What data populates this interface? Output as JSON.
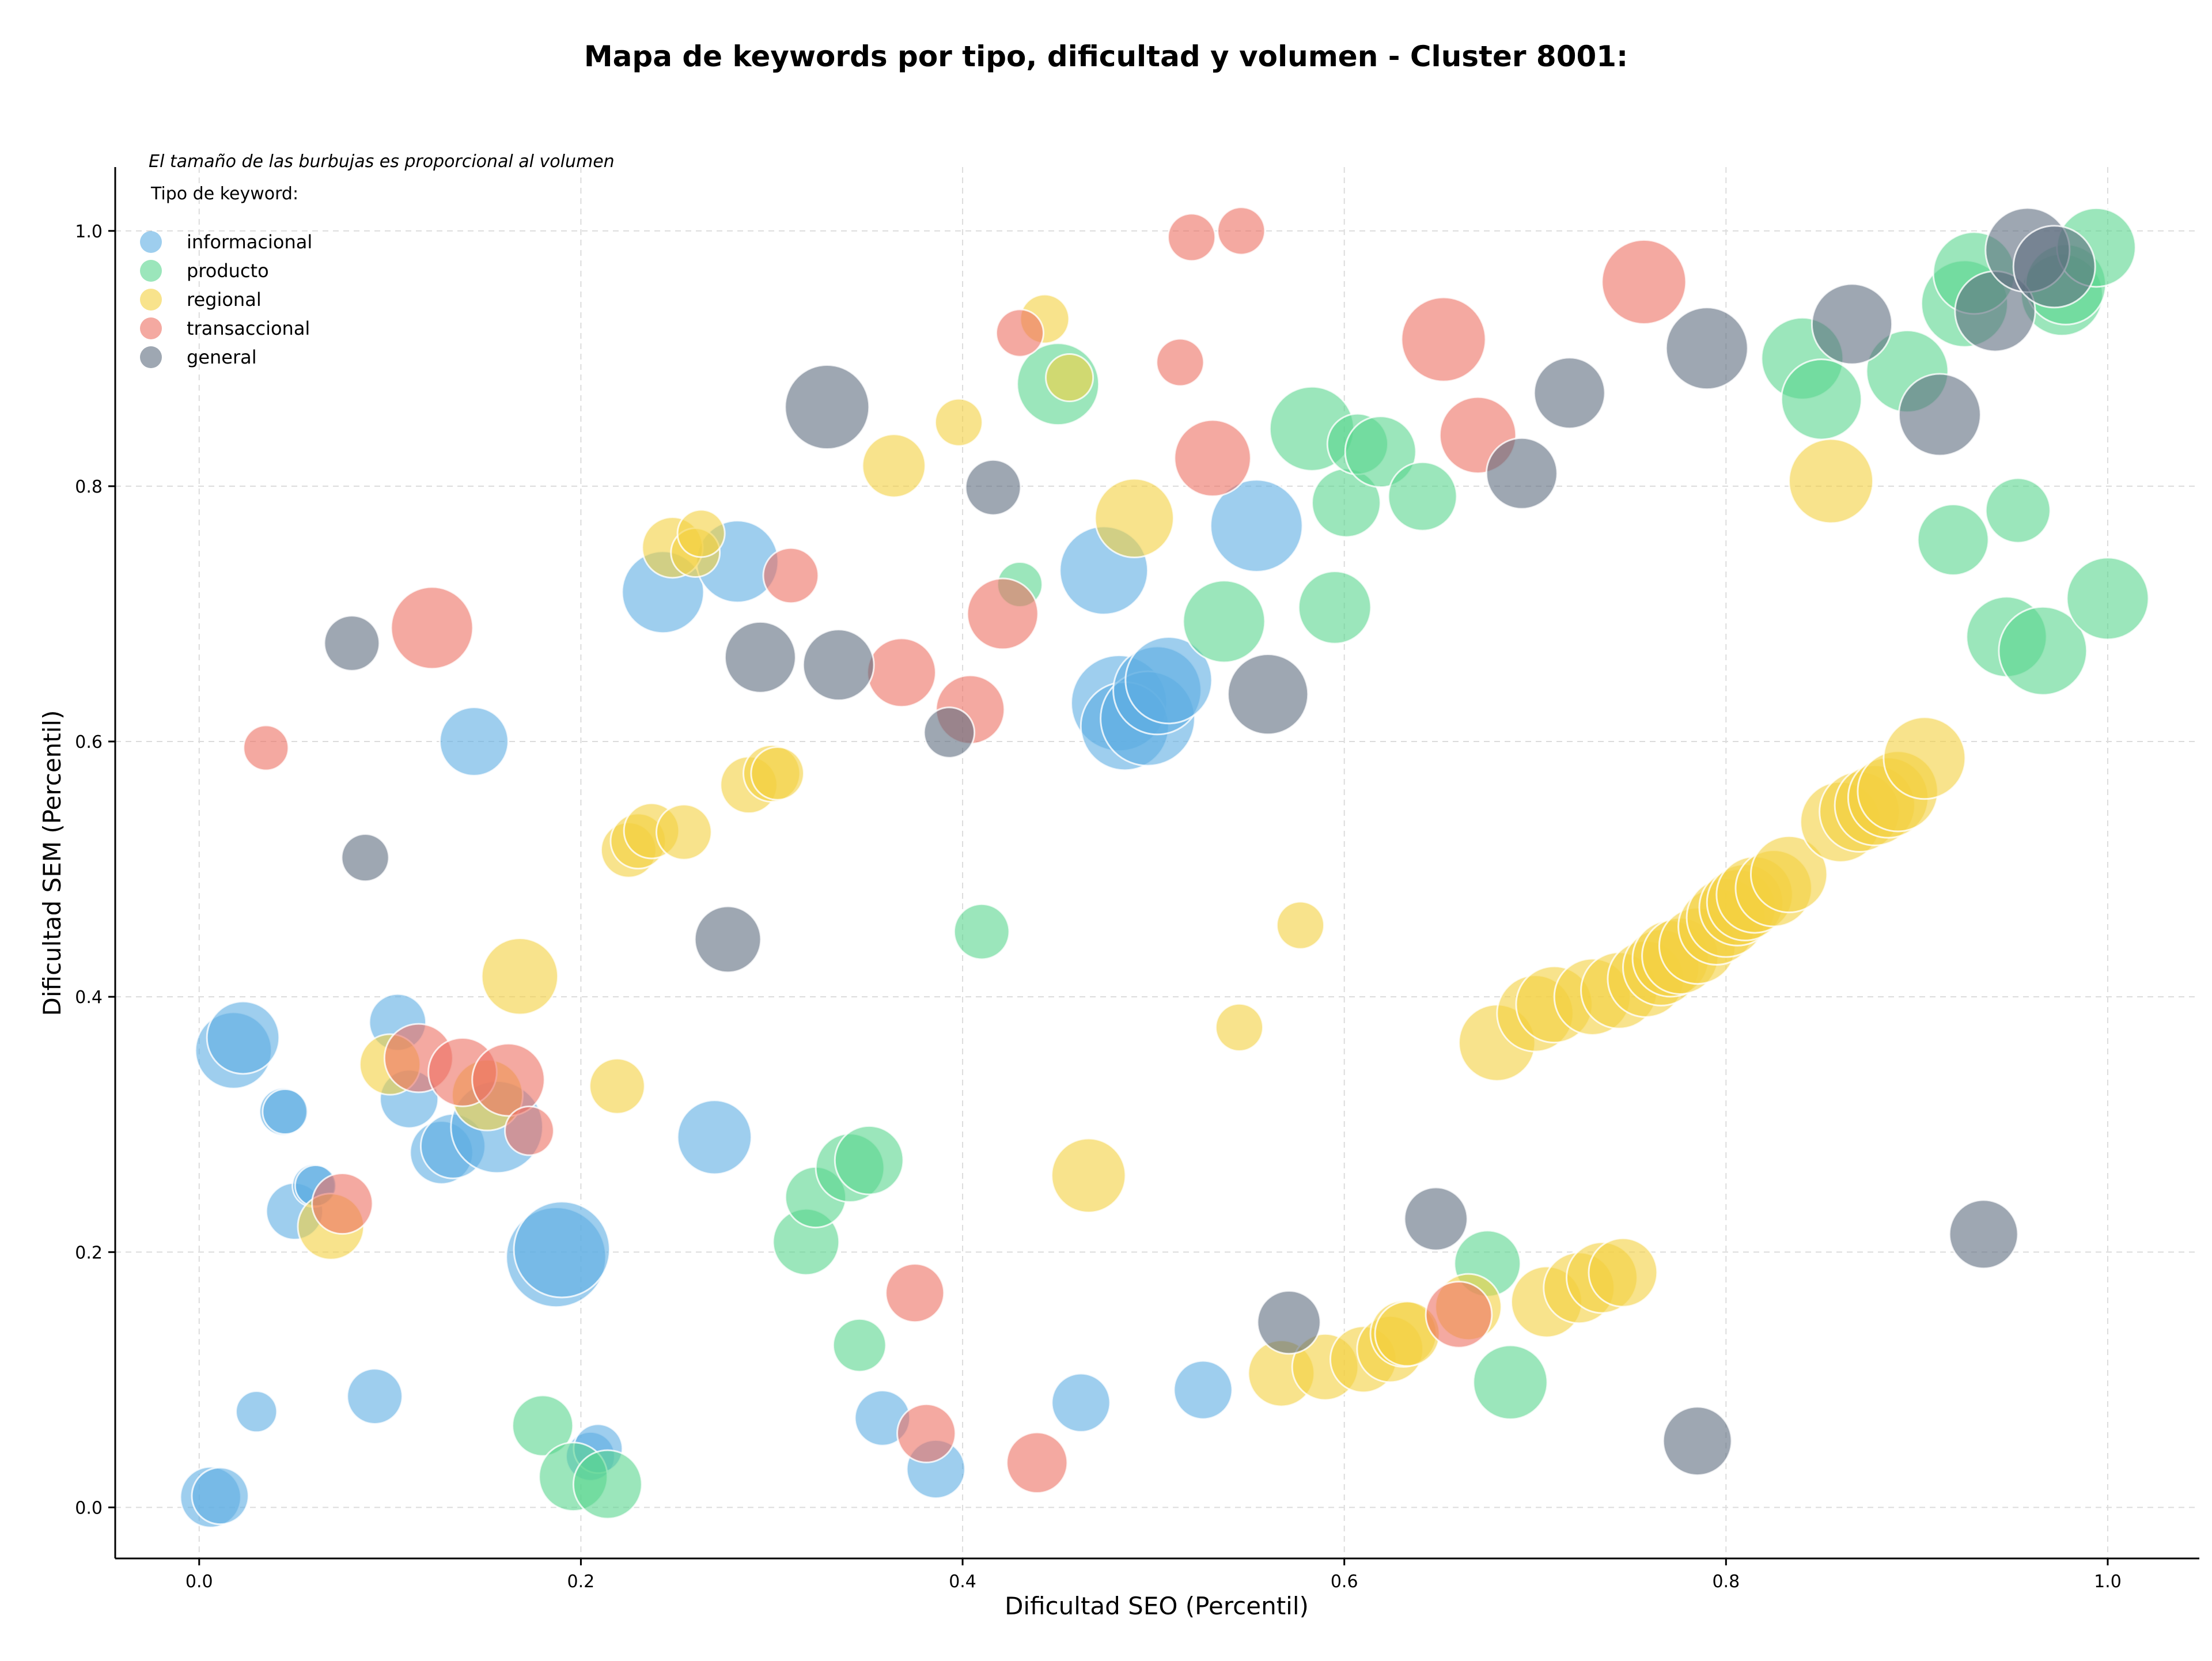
{
  "title": "Mapa de keywords por tipo, dificultad y volumen - Cluster 8001:",
  "note": "El tamaño de las burbujas es proporcional al volumen",
  "chart_data": {
    "type": "scatter",
    "title": "Mapa de keywords por tipo, dificultad y volumen - Cluster 8001:",
    "xlabel": "Dificultad SEO (Percentil)",
    "ylabel": "Dificultad SEM (Percentil)",
    "xlim": [
      -0.044,
      1.048
    ],
    "ylim": [
      -0.04,
      1.05
    ],
    "xticks": [
      0.0,
      0.2,
      0.4,
      0.6,
      0.8,
      1.0
    ],
    "yticks": [
      0.0,
      0.2,
      0.4,
      0.6,
      0.8,
      1.0
    ],
    "xtick_labels": [
      "0.0",
      "0.2",
      "0.4",
      "0.6",
      "0.8",
      "1.0"
    ],
    "ytick_labels": [
      "0.0",
      "0.2",
      "0.4",
      "0.6",
      "0.8",
      "1.0"
    ],
    "grid": true,
    "legend_position": "top-left",
    "legend_title": "Tipo de keyword:",
    "size_encoding": "volume (relative 0-1)",
    "series": [
      {
        "name": "informacional",
        "color": "#5DADE2",
        "points": [
          [
            0.006,
            0.008,
            0.45
          ],
          [
            0.011,
            0.009,
            0.4
          ],
          [
            0.03,
            0.075,
            0.2
          ],
          [
            0.018,
            0.358,
            0.65
          ],
          [
            0.023,
            0.368,
            0.6
          ],
          [
            0.044,
            0.31,
            0.28
          ],
          [
            0.045,
            0.31,
            0.25
          ],
          [
            0.05,
            0.232,
            0.4
          ],
          [
            0.06,
            0.252,
            0.22
          ],
          [
            0.061,
            0.252,
            0.2
          ],
          [
            0.092,
            0.087,
            0.38
          ],
          [
            0.104,
            0.38,
            0.4
          ],
          [
            0.11,
            0.32,
            0.42
          ],
          [
            0.127,
            0.278,
            0.48
          ],
          [
            0.133,
            0.283,
            0.5
          ],
          [
            0.144,
            0.6,
            0.55
          ],
          [
            0.156,
            0.298,
            0.85
          ],
          [
            0.187,
            0.196,
            0.95
          ],
          [
            0.19,
            0.202,
            0.9
          ],
          [
            0.205,
            0.04,
            0.3
          ],
          [
            0.209,
            0.046,
            0.3
          ],
          [
            0.243,
            0.717,
            0.72
          ],
          [
            0.27,
            0.29,
            0.62
          ],
          [
            0.282,
            0.741,
            0.72
          ],
          [
            0.358,
            0.07,
            0.38
          ],
          [
            0.386,
            0.03,
            0.42
          ],
          [
            0.462,
            0.082,
            0.42
          ],
          [
            0.474,
            0.734,
            0.8
          ],
          [
            0.482,
            0.63,
            0.9
          ],
          [
            0.485,
            0.612,
            0.8
          ],
          [
            0.497,
            0.618,
            0.88
          ],
          [
            0.502,
            0.64,
            0.8
          ],
          [
            0.508,
            0.648,
            0.78
          ],
          [
            0.526,
            0.092,
            0.42
          ],
          [
            0.554,
            0.769,
            0.85
          ]
        ]
      },
      {
        "name": "producto",
        "color": "#58D68D",
        "points": [
          [
            0.18,
            0.064,
            0.45
          ],
          [
            0.196,
            0.024,
            0.55
          ],
          [
            0.214,
            0.018,
            0.55
          ],
          [
            0.318,
            0.208,
            0.52
          ],
          [
            0.323,
            0.243,
            0.45
          ],
          [
            0.341,
            0.266,
            0.55
          ],
          [
            0.351,
            0.272,
            0.55
          ],
          [
            0.346,
            0.127,
            0.35
          ],
          [
            0.41,
            0.451,
            0.38
          ],
          [
            0.43,
            0.723,
            0.25
          ],
          [
            0.45,
            0.88,
            0.72
          ],
          [
            0.537,
            0.694,
            0.72
          ],
          [
            0.583,
            0.845,
            0.75
          ],
          [
            0.595,
            0.705,
            0.6
          ],
          [
            0.601,
            0.787,
            0.55
          ],
          [
            0.607,
            0.833,
            0.45
          ],
          [
            0.619,
            0.827,
            0.58
          ],
          [
            0.641,
            0.792,
            0.55
          ],
          [
            0.675,
            0.191,
            0.52
          ],
          [
            0.687,
            0.098,
            0.62
          ],
          [
            0.84,
            0.9,
            0.72
          ],
          [
            0.85,
            0.868,
            0.7
          ],
          [
            0.895,
            0.89,
            0.72
          ],
          [
            0.919,
            0.758,
            0.58
          ],
          [
            0.925,
            0.943,
            0.78
          ],
          [
            0.93,
            0.967,
            0.72
          ],
          [
            0.947,
            0.682,
            0.7
          ],
          [
            0.953,
            0.781,
            0.5
          ],
          [
            0.966,
            0.671,
            0.8
          ],
          [
            0.976,
            0.95,
            0.72
          ],
          [
            0.978,
            0.958,
            0.7
          ],
          [
            0.994,
            0.987,
            0.68
          ],
          [
            1.0,
            0.712,
            0.72
          ]
        ]
      },
      {
        "name": "regional",
        "color": "#F4D03F",
        "points": [
          [
            0.069,
            0.22,
            0.52
          ],
          [
            0.1,
            0.347,
            0.45
          ],
          [
            0.151,
            0.323,
            0.58
          ],
          [
            0.168,
            0.416,
            0.65
          ],
          [
            0.219,
            0.33,
            0.38
          ],
          [
            0.225,
            0.515,
            0.38
          ],
          [
            0.23,
            0.522,
            0.38
          ],
          [
            0.237,
            0.53,
            0.38
          ],
          [
            0.254,
            0.529,
            0.38
          ],
          [
            0.248,
            0.752,
            0.45
          ],
          [
            0.26,
            0.748,
            0.3
          ],
          [
            0.263,
            0.763,
            0.28
          ],
          [
            0.288,
            0.566,
            0.4
          ],
          [
            0.3,
            0.575,
            0.4
          ],
          [
            0.303,
            0.575,
            0.35
          ],
          [
            0.364,
            0.816,
            0.48
          ],
          [
            0.398,
            0.85,
            0.28
          ],
          [
            0.443,
            0.931,
            0.3
          ],
          [
            0.456,
            0.885,
            0.28
          ],
          [
            0.466,
            0.26,
            0.62
          ],
          [
            0.49,
            0.775,
            0.68
          ],
          [
            0.545,
            0.376,
            0.28
          ],
          [
            0.577,
            0.456,
            0.28
          ],
          [
            0.567,
            0.105,
            0.52
          ],
          [
            0.59,
            0.11,
            0.52
          ],
          [
            0.61,
            0.116,
            0.52
          ],
          [
            0.624,
            0.124,
            0.52
          ],
          [
            0.631,
            0.136,
            0.52
          ],
          [
            0.633,
            0.136,
            0.5
          ],
          [
            0.665,
            0.157,
            0.52
          ],
          [
            0.68,
            0.364,
            0.65
          ],
          [
            0.7,
            0.387,
            0.65
          ],
          [
            0.706,
            0.161,
            0.58
          ],
          [
            0.71,
            0.394,
            0.65
          ],
          [
            0.723,
            0.172,
            0.58
          ],
          [
            0.73,
            0.4,
            0.65
          ],
          [
            0.735,
            0.18,
            0.58
          ],
          [
            0.744,
            0.405,
            0.65
          ],
          [
            0.746,
            0.184,
            0.55
          ],
          [
            0.758,
            0.414,
            0.65
          ],
          [
            0.766,
            0.423,
            0.65
          ],
          [
            0.771,
            0.43,
            0.65
          ],
          [
            0.776,
            0.432,
            0.65
          ],
          [
            0.785,
            0.44,
            0.65
          ],
          [
            0.795,
            0.455,
            0.65
          ],
          [
            0.8,
            0.462,
            0.68
          ],
          [
            0.806,
            0.47,
            0.65
          ],
          [
            0.81,
            0.474,
            0.65
          ],
          [
            0.815,
            0.48,
            0.65
          ],
          [
            0.825,
            0.485,
            0.65
          ],
          [
            0.833,
            0.496,
            0.65
          ],
          [
            0.86,
            0.537,
            0.7
          ],
          [
            0.87,
            0.545,
            0.7
          ],
          [
            0.878,
            0.55,
            0.7
          ],
          [
            0.885,
            0.556,
            0.7
          ],
          [
            0.89,
            0.561,
            0.7
          ],
          [
            0.855,
            0.804,
            0.75
          ],
          [
            0.904,
            0.587,
            0.72
          ]
        ]
      },
      {
        "name": "transaccional",
        "color": "#EC7063",
        "points": [
          [
            0.035,
            0.595,
            0.25
          ],
          [
            0.075,
            0.238,
            0.45
          ],
          [
            0.115,
            0.352,
            0.55
          ],
          [
            0.122,
            0.689,
            0.72
          ],
          [
            0.138,
            0.341,
            0.55
          ],
          [
            0.162,
            0.335,
            0.6
          ],
          [
            0.173,
            0.295,
            0.3
          ],
          [
            0.31,
            0.73,
            0.38
          ],
          [
            0.368,
            0.654,
            0.55
          ],
          [
            0.375,
            0.168,
            0.42
          ],
          [
            0.381,
            0.058,
            0.42
          ],
          [
            0.404,
            0.625,
            0.55
          ],
          [
            0.421,
            0.7,
            0.58
          ],
          [
            0.43,
            0.92,
            0.28
          ],
          [
            0.439,
            0.035,
            0.45
          ],
          [
            0.514,
            0.897,
            0.28
          ],
          [
            0.52,
            0.995,
            0.28
          ],
          [
            0.531,
            0.822,
            0.65
          ],
          [
            0.546,
            1.0,
            0.28
          ],
          [
            0.652,
            0.915,
            0.75
          ],
          [
            0.67,
            0.84,
            0.65
          ],
          [
            0.66,
            0.151,
            0.52
          ],
          [
            0.757,
            0.96,
            0.75
          ]
        ]
      },
      {
        "name": "general",
        "color": "#5D6D7E",
        "points": [
          [
            0.08,
            0.677,
            0.38
          ],
          [
            0.087,
            0.509,
            0.28
          ],
          [
            0.277,
            0.445,
            0.52
          ],
          [
            0.294,
            0.666,
            0.58
          ],
          [
            0.329,
            0.862,
            0.75
          ],
          [
            0.335,
            0.66,
            0.58
          ],
          [
            0.393,
            0.607,
            0.32
          ],
          [
            0.416,
            0.799,
            0.38
          ],
          [
            0.56,
            0.637,
            0.7
          ],
          [
            0.571,
            0.145,
            0.48
          ],
          [
            0.648,
            0.226,
            0.48
          ],
          [
            0.693,
            0.81,
            0.58
          ],
          [
            0.718,
            0.873,
            0.58
          ],
          [
            0.785,
            0.052,
            0.55
          ],
          [
            0.79,
            0.908,
            0.72
          ],
          [
            0.866,
            0.927,
            0.7
          ],
          [
            0.912,
            0.856,
            0.72
          ],
          [
            0.935,
            0.214,
            0.55
          ],
          [
            0.941,
            0.937,
            0.7
          ],
          [
            0.958,
            0.985,
            0.75
          ],
          [
            0.972,
            0.972,
            0.72
          ]
        ]
      }
    ]
  }
}
